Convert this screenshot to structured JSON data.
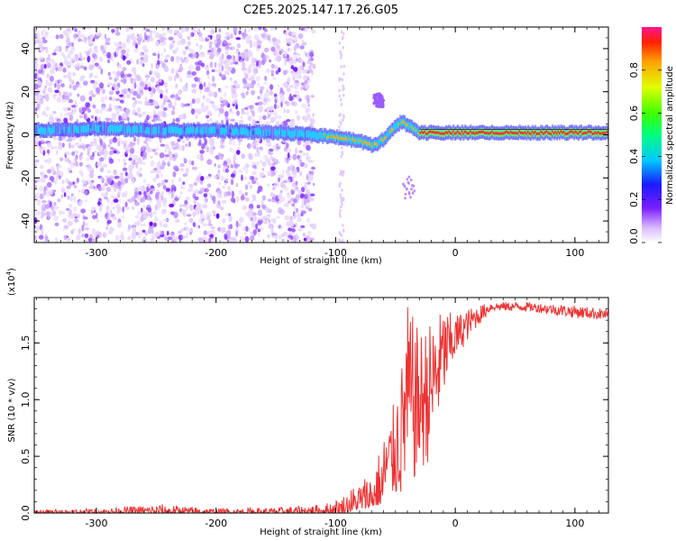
{
  "title": "C2E5.2025.147.17.26.G05",
  "chart_data": [
    {
      "type": "heatmap",
      "xlabel": "Height of straight line (km)",
      "ylabel": "Frequency (Hz)",
      "xlim": [
        -352,
        128
      ],
      "ylim": [
        -50,
        50
      ],
      "xticks": [
        -300,
        -200,
        -100,
        0,
        100
      ],
      "yticks": [
        -40,
        -20,
        0,
        20,
        40
      ],
      "colorbar": {
        "label": "Normalized spectral amplitude",
        "range": [
          0,
          1
        ],
        "ticks": [
          0.0,
          0.2,
          0.4,
          0.6,
          0.8
        ],
        "tick_labels": [
          "0.0",
          "0.2",
          "0.4",
          "0.6",
          "0.8"
        ]
      },
      "signal_track": [
        {
          "x": -352,
          "f": 2
        },
        {
          "x": -300,
          "f": 3
        },
        {
          "x": -250,
          "f": 2
        },
        {
          "x": -200,
          "f": 2
        },
        {
          "x": -150,
          "f": 1
        },
        {
          "x": -120,
          "f": 0
        },
        {
          "x": -100,
          "f": -1
        },
        {
          "x": -80,
          "f": -3
        },
        {
          "x": -68,
          "f": -5
        },
        {
          "x": -60,
          "f": -2
        },
        {
          "x": -52,
          "f": 3
        },
        {
          "x": -45,
          "f": 6
        },
        {
          "x": -38,
          "f": 4
        },
        {
          "x": -30,
          "f": 1
        },
        {
          "x": -20,
          "f": 1
        },
        {
          "x": 0,
          "f": 1
        },
        {
          "x": 50,
          "f": 1
        },
        {
          "x": 128,
          "f": 1
        }
      ]
    },
    {
      "type": "line",
      "xlabel": "Height of straight line (km)",
      "ylabel": "SNR (10 * v/v)",
      "y_multiplier": "(x10",
      "y_multiplier_exp": "4",
      "y_multiplier_close": ")",
      "xlim": [
        -352,
        128
      ],
      "ylim": [
        0,
        1.9
      ],
      "xticks": [
        -300,
        -200,
        -100,
        0,
        100
      ],
      "yticks": [
        0.0,
        0.5,
        1.0,
        1.5
      ],
      "ytick_labels": [
        "0.0",
        "0.5",
        "1.0",
        "1.5"
      ],
      "color": "#ee3333",
      "envelope": [
        {
          "x": -352,
          "lo": 0.0,
          "hi": 0.03
        },
        {
          "x": -300,
          "lo": 0.0,
          "hi": 0.04
        },
        {
          "x": -245,
          "lo": 0.0,
          "hi": 0.08
        },
        {
          "x": -200,
          "lo": 0.0,
          "hi": 0.04
        },
        {
          "x": -150,
          "lo": 0.0,
          "hi": 0.05
        },
        {
          "x": -110,
          "lo": 0.0,
          "hi": 0.08
        },
        {
          "x": -95,
          "lo": 0.0,
          "hi": 0.15
        },
        {
          "x": -70,
          "lo": 0.05,
          "hi": 0.4
        },
        {
          "x": -55,
          "lo": 0.1,
          "hi": 0.8
        },
        {
          "x": -45,
          "lo": 0.1,
          "hi": 1.3
        },
        {
          "x": -40,
          "lo": 0.2,
          "hi": 1.85
        },
        {
          "x": -30,
          "lo": 0.3,
          "hi": 1.6
        },
        {
          "x": -20,
          "lo": 0.5,
          "hi": 1.7
        },
        {
          "x": -10,
          "lo": 1.0,
          "hi": 1.8
        },
        {
          "x": 0,
          "lo": 1.35,
          "hi": 1.75
        },
        {
          "x": 15,
          "lo": 1.6,
          "hi": 1.82
        },
        {
          "x": 30,
          "lo": 1.78,
          "hi": 1.86
        },
        {
          "x": 60,
          "lo": 1.78,
          "hi": 1.86
        },
        {
          "x": 100,
          "lo": 1.72,
          "hi": 1.83
        },
        {
          "x": 128,
          "lo": 1.7,
          "hi": 1.8
        }
      ]
    }
  ]
}
